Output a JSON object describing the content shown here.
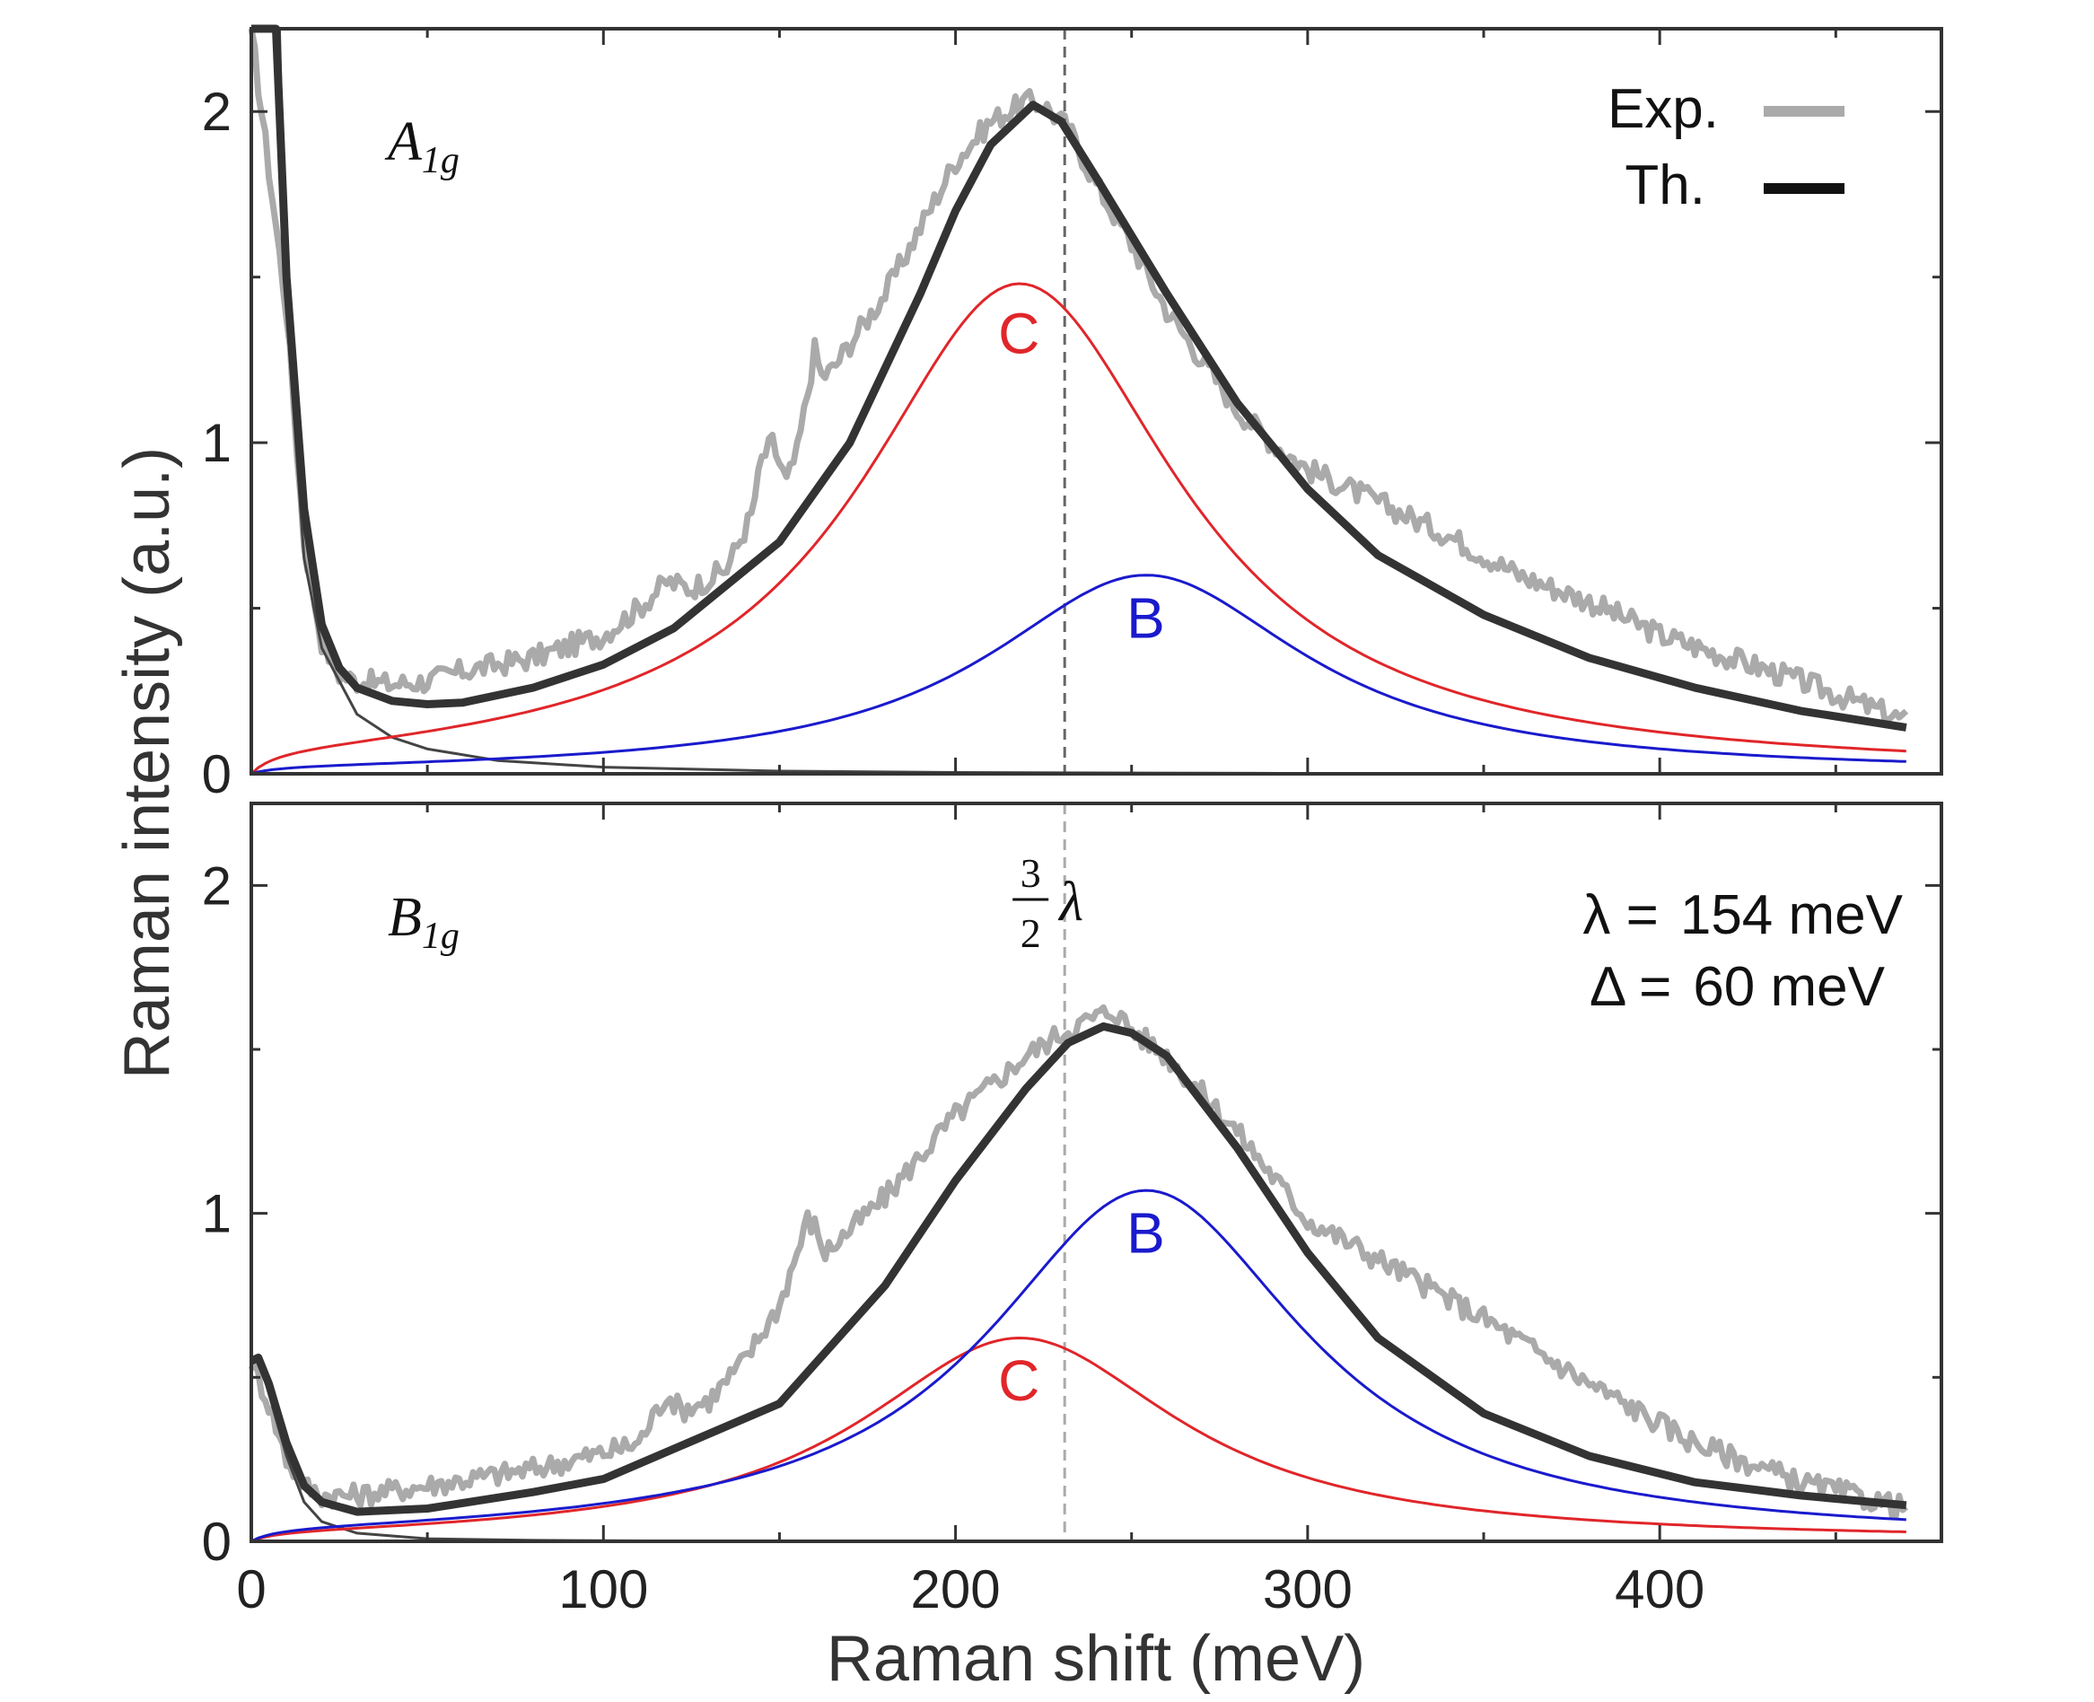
{
  "chart_data": {
    "type": "line",
    "xlabel": "Raman shift (meV)",
    "ylabel": "Raman intensity (a.u.)",
    "xlim": [
      0,
      480
    ],
    "xticks": [
      0,
      100,
      200,
      300,
      400
    ],
    "ylim": [
      0,
      2.25
    ],
    "yticks": [
      0,
      1,
      2
    ],
    "legend": {
      "placement": "top-right",
      "entries": [
        {
          "label": "Exp.",
          "color": "#aaaaaa"
        },
        {
          "label": "Th.",
          "color": "#111111"
        }
      ]
    },
    "annotation": {
      "label_num": "3",
      "label_den": "2",
      "label_sym": "λ",
      "x": 231
    },
    "colors": {
      "exp": "#aaaaaa",
      "theory": "#333333",
      "C": "#e0262a",
      "B": "#1a1acd",
      "background": "#444444"
    },
    "panels": [
      {
        "name": "A1g",
        "label_main": "A",
        "label_sub": "1g",
        "components": [
          {
            "label": "C",
            "peak_x": 218,
            "peak_y": 1.48,
            "label_x": 218,
            "label_y": 1.33
          },
          {
            "label": "B",
            "peak_x": 254,
            "peak_y": 0.6,
            "label_x": 254,
            "label_y": 0.47
          }
        ],
        "theory": {
          "x": [
            0,
            7,
            10,
            15,
            20,
            25,
            30,
            40,
            50,
            60,
            80,
            100,
            120,
            150,
            170,
            190,
            200,
            210,
            222,
            230,
            240,
            260,
            280,
            300,
            320,
            350,
            380,
            410,
            440,
            470
          ],
          "y": [
            2.25,
            2.25,
            1.5,
            0.8,
            0.45,
            0.32,
            0.26,
            0.22,
            0.21,
            0.215,
            0.26,
            0.33,
            0.44,
            0.7,
            1.0,
            1.45,
            1.7,
            1.9,
            2.02,
            1.97,
            1.8,
            1.45,
            1.12,
            0.86,
            0.66,
            0.48,
            0.35,
            0.26,
            0.19,
            0.14
          ]
        },
        "background": {
          "x": [
            0,
            8,
            10,
            15,
            20,
            30,
            40,
            50,
            70,
            100,
            150,
            200,
            300,
            470
          ],
          "y": [
            2.25,
            2.25,
            1.4,
            0.65,
            0.38,
            0.18,
            0.11,
            0.075,
            0.04,
            0.02,
            0.008,
            0.004,
            0.001,
            0.0
          ]
        },
        "experiment": {
          "x": [
            0,
            10,
            15,
            20,
            25,
            30,
            40,
            50,
            60,
            80,
            100,
            110,
            118,
            125,
            135,
            142,
            145,
            148,
            152,
            155,
            158,
            160,
            162,
            165,
            170,
            180,
            190,
            200,
            210,
            220,
            225,
            232,
            240,
            250,
            260,
            270,
            280,
            290,
            300,
            320,
            340,
            360,
            380,
            400,
            420,
            440,
            460,
            470
          ],
          "y": [
            2.25,
            1.4,
            0.7,
            0.4,
            0.3,
            0.28,
            0.27,
            0.28,
            0.31,
            0.35,
            0.42,
            0.5,
            0.58,
            0.56,
            0.62,
            0.78,
            0.95,
            1.0,
            0.88,
            0.97,
            1.15,
            1.28,
            1.2,
            1.22,
            1.3,
            1.45,
            1.65,
            1.85,
            1.97,
            2.03,
            2.02,
            1.95,
            1.78,
            1.6,
            1.4,
            1.25,
            1.1,
            1.0,
            0.92,
            0.82,
            0.72,
            0.6,
            0.52,
            0.42,
            0.35,
            0.28,
            0.2,
            0.16
          ]
        }
      },
      {
        "name": "B1g",
        "label_main": "B",
        "label_sub": "1g",
        "components": [
          {
            "label": "C",
            "peak_x": 218,
            "peak_y": 0.62,
            "label_x": 218,
            "label_y": 0.49
          },
          {
            "label": "B",
            "peak_x": 254,
            "peak_y": 1.07,
            "label_x": 254,
            "label_y": 0.94
          }
        ],
        "theory": {
          "x": [
            0,
            2,
            5,
            10,
            15,
            20,
            30,
            50,
            80,
            100,
            150,
            180,
            200,
            220,
            232,
            242,
            250,
            260,
            280,
            300,
            320,
            350,
            380,
            410,
            440,
            470
          ],
          "y": [
            0.55,
            0.56,
            0.48,
            0.3,
            0.17,
            0.12,
            0.09,
            0.1,
            0.15,
            0.19,
            0.42,
            0.78,
            1.1,
            1.38,
            1.52,
            1.57,
            1.55,
            1.48,
            1.2,
            0.88,
            0.62,
            0.39,
            0.26,
            0.18,
            0.14,
            0.11
          ]
        },
        "background": {
          "x": [
            0,
            2,
            5,
            10,
            15,
            20,
            30,
            50,
            80,
            120,
            200,
            470
          ],
          "y": [
            0.55,
            0.56,
            0.45,
            0.26,
            0.12,
            0.06,
            0.025,
            0.008,
            0.003,
            0.001,
            0.0,
            0.0
          ]
        },
        "experiment": {
          "x": [
            0,
            5,
            10,
            15,
            20,
            30,
            50,
            80,
            100,
            110,
            118,
            122,
            130,
            140,
            150,
            155,
            158,
            160,
            163,
            170,
            180,
            200,
            220,
            230,
            240,
            245,
            250,
            260,
            280,
            300,
            320,
            350,
            380,
            410,
            440,
            470
          ],
          "y": [
            0.55,
            0.42,
            0.25,
            0.17,
            0.14,
            0.14,
            0.17,
            0.22,
            0.27,
            0.3,
            0.45,
            0.4,
            0.43,
            0.55,
            0.72,
            0.88,
            0.98,
            0.96,
            0.88,
            0.95,
            1.05,
            1.3,
            1.48,
            1.55,
            1.6,
            1.62,
            1.56,
            1.48,
            1.25,
            0.98,
            0.86,
            0.68,
            0.48,
            0.3,
            0.18,
            0.1
          ]
        }
      }
    ]
  },
  "parameters": {
    "lambda_label": "λ =",
    "lambda_value": "154 meV",
    "delta_label": "Δ =",
    "delta_value": "60 meV"
  }
}
